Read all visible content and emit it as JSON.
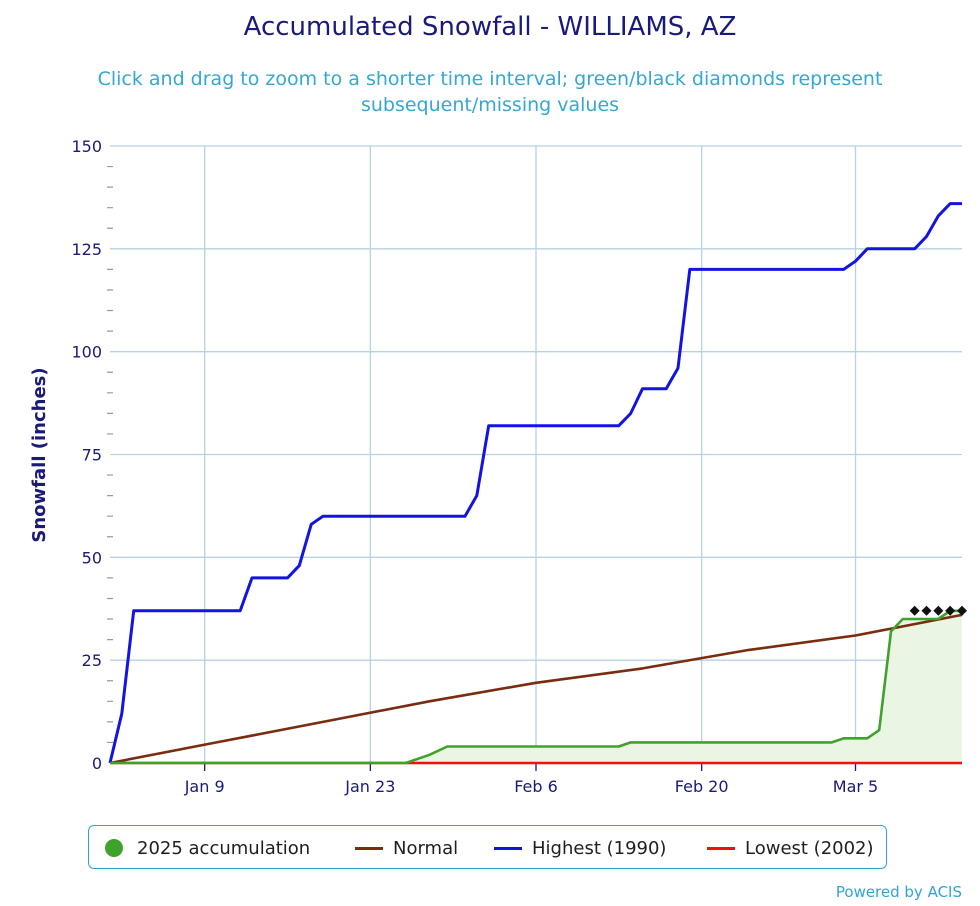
{
  "chart_data": {
    "type": "line",
    "title": "Accumulated Snowfall - WILLIAMS, AZ",
    "subtitle": "Click and drag to zoom to a shorter time interval; green/black diamonds represent subsequent/missing values",
    "ylabel": "Snowfall (inches)",
    "ylim": [
      0,
      150
    ],
    "yticks": [
      0,
      25,
      50,
      75,
      100,
      125,
      150
    ],
    "xlim": [
      1,
      73
    ],
    "xticks": [
      {
        "day": 9,
        "label": "Jan 9"
      },
      {
        "day": 23,
        "label": "Jan 23"
      },
      {
        "day": 37,
        "label": "Feb 6"
      },
      {
        "day": 51,
        "label": "Feb 20"
      },
      {
        "day": 64,
        "label": "Mar 5"
      }
    ],
    "x_axis_note": "x values are day of year",
    "grid": true,
    "legend_position": "bottom",
    "series": [
      {
        "name": "2025 accumulation",
        "color": "#3fa32b",
        "fill": "#eaf5e4",
        "points": [
          [
            1,
            0
          ],
          [
            26,
            0
          ],
          [
            28,
            2
          ],
          [
            29.5,
            4
          ],
          [
            31,
            4
          ],
          [
            44,
            4
          ],
          [
            45,
            5
          ],
          [
            62,
            5
          ],
          [
            63,
            6
          ],
          [
            65,
            6
          ],
          [
            66,
            8
          ],
          [
            67,
            32
          ],
          [
            68,
            35
          ],
          [
            71,
            35
          ],
          [
            72,
            37
          ],
          [
            73,
            37
          ]
        ]
      },
      {
        "name": "Normal",
        "color": "#7a2c0e",
        "points": [
          [
            1,
            0
          ],
          [
            10,
            5
          ],
          [
            19,
            10
          ],
          [
            28,
            15
          ],
          [
            37,
            19.5
          ],
          [
            46,
            23
          ],
          [
            55,
            27.5
          ],
          [
            64,
            31
          ],
          [
            73,
            36
          ]
        ]
      },
      {
        "name": "Highest (1990)",
        "color": "#1414e0",
        "points": [
          [
            1,
            0
          ],
          [
            2,
            12
          ],
          [
            3,
            37
          ],
          [
            12,
            37
          ],
          [
            13,
            45
          ],
          [
            16,
            45
          ],
          [
            17,
            48
          ],
          [
            18,
            58
          ],
          [
            19,
            60
          ],
          [
            31,
            60
          ],
          [
            32,
            65
          ],
          [
            33,
            82
          ],
          [
            44,
            82
          ],
          [
            45,
            85
          ],
          [
            46,
            91
          ],
          [
            48,
            91
          ],
          [
            49,
            96
          ],
          [
            50,
            120
          ],
          [
            63,
            120
          ],
          [
            64,
            122
          ],
          [
            65,
            125
          ],
          [
            69,
            125
          ],
          [
            70,
            128
          ],
          [
            71,
            133
          ],
          [
            72,
            136
          ],
          [
            73,
            136
          ]
        ]
      },
      {
        "name": "Lowest (2002)",
        "color": "#ee1111",
        "points": [
          [
            1,
            0
          ],
          [
            73,
            0
          ]
        ]
      }
    ],
    "missing_values_markers": [
      [
        69,
        37
      ],
      [
        70,
        37
      ],
      [
        71,
        37
      ],
      [
        72,
        37
      ],
      [
        73,
        37
      ]
    ]
  },
  "legend": {
    "items": [
      "2025 accumulation",
      "Normal",
      "Highest (1990)",
      "Lowest (2002)"
    ]
  },
  "credit": "Powered by ACIS"
}
